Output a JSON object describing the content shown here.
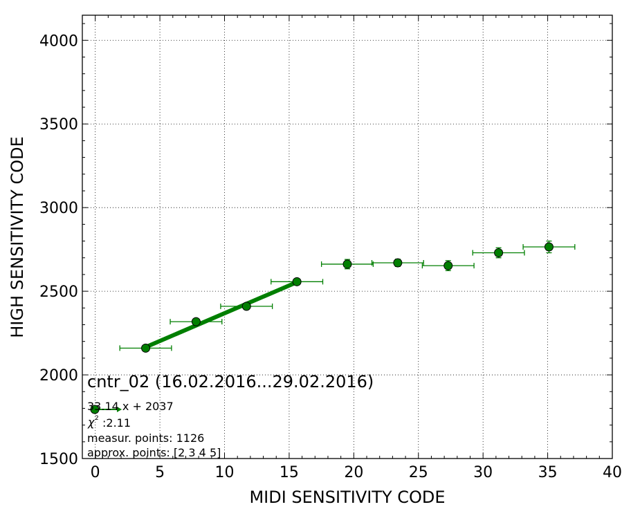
{
  "chart_data": {
    "type": "scatter",
    "xlabel": "MIDI SENSITIVITY CODE",
    "ylabel": "HIGH SENSITIVITY CODE",
    "xlim": [
      -1,
      40
    ],
    "ylim": [
      1500,
      4150
    ],
    "x_ticks": [
      0,
      5,
      10,
      15,
      20,
      25,
      30,
      35,
      40
    ],
    "y_ticks": [
      1500,
      2000,
      2500,
      3000,
      3500,
      4000
    ],
    "grid": true,
    "grid_style": "dotted",
    "marker_color": "#007f00",
    "line_color": "#007f00",
    "points": [
      {
        "x": 3.9,
        "y": 2160,
        "xerr": 2.0,
        "yerr": 12
      },
      {
        "x": 7.8,
        "y": 2318,
        "xerr": 2.0,
        "yerr": 12
      },
      {
        "x": 11.7,
        "y": 2410,
        "xerr": 2.0,
        "yerr": 12
      },
      {
        "x": 15.6,
        "y": 2557,
        "xerr": 2.0,
        "yerr": 12
      },
      {
        "x": 19.5,
        "y": 2662,
        "xerr": 2.0,
        "yerr": 28
      },
      {
        "x": 23.4,
        "y": 2670,
        "xerr": 2.0,
        "yerr": 22
      },
      {
        "x": 27.3,
        "y": 2653,
        "xerr": 2.0,
        "yerr": 30
      },
      {
        "x": 31.2,
        "y": 2730,
        "xerr": 2.0,
        "yerr": 30
      },
      {
        "x": 35.1,
        "y": 2765,
        "xerr": 2.0,
        "yerr": 35
      }
    ],
    "fit": {
      "slope": 33.14,
      "intercept": 2037,
      "x_range": [
        3.9,
        15.6
      ]
    },
    "annotation": {
      "title": "cntr_02 (16.02.2016...29.02.2016)",
      "lines": [
        "33.14 x + 2037",
        ":2.11",
        "measur. points: 1126",
        "approx. points: [2 3 4 5]"
      ],
      "chi_symbol": "χ",
      "chi_exponent": "2"
    }
  }
}
